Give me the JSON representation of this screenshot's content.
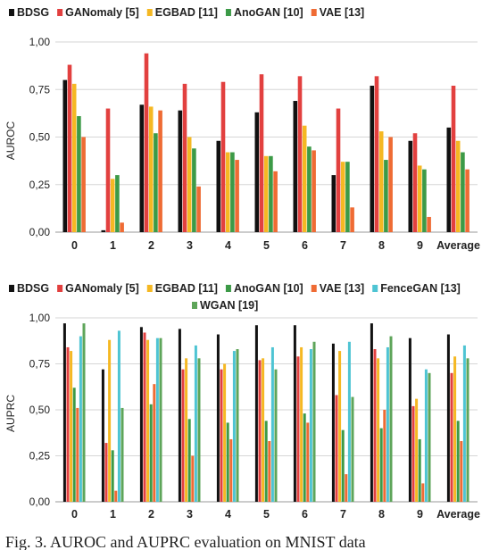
{
  "caption": "Fig. 3. AUROC and AUPRC evaluation on MNIST data",
  "chart_data": [
    {
      "type": "bar",
      "title": "",
      "ylabel": "AUROC",
      "xlabel": "",
      "ylim": [
        0,
        1
      ],
      "yticks": [
        "0,00",
        "0,25",
        "0,50",
        "0,75",
        "1,00"
      ],
      "yticks_values": [
        0,
        0.25,
        0.5,
        0.75,
        1.0
      ],
      "grid": true,
      "legend": "top",
      "categories": [
        "0",
        "1",
        "2",
        "3",
        "4",
        "5",
        "6",
        "7",
        "8",
        "9",
        "Average"
      ],
      "series": [
        {
          "name": "BDSG",
          "color": "#111111",
          "values": [
            0.8,
            0.01,
            0.67,
            0.64,
            0.48,
            0.63,
            0.69,
            0.3,
            0.77,
            0.48,
            0.55
          ]
        },
        {
          "name": "GANomaly [5]",
          "color": "#e2403f",
          "values": [
            0.88,
            0.65,
            0.94,
            0.78,
            0.79,
            0.83,
            0.82,
            0.65,
            0.82,
            0.52,
            0.77
          ]
        },
        {
          "name": "EGBAD [11]",
          "color": "#f5b823",
          "values": [
            0.78,
            0.28,
            0.66,
            0.5,
            0.42,
            0.4,
            0.56,
            0.37,
            0.53,
            0.35,
            0.48
          ]
        },
        {
          "name": "AnoGAN [10]",
          "color": "#3c9a47",
          "values": [
            0.61,
            0.3,
            0.52,
            0.44,
            0.42,
            0.4,
            0.45,
            0.37,
            0.38,
            0.33,
            0.42
          ]
        },
        {
          "name": "VAE [13]",
          "color": "#ef6b34",
          "values": [
            0.5,
            0.05,
            0.64,
            0.24,
            0.38,
            0.32,
            0.43,
            0.13,
            0.5,
            0.08,
            0.33
          ]
        }
      ]
    },
    {
      "type": "bar",
      "title": "",
      "ylabel": "AUPRC",
      "xlabel": "",
      "ylim": [
        0,
        1
      ],
      "yticks": [
        "0,00",
        "0,25",
        "0,50",
        "0,75",
        "1,00"
      ],
      "yticks_values": [
        0,
        0.25,
        0.5,
        0.75,
        1.0
      ],
      "grid": true,
      "legend": "top",
      "categories": [
        "0",
        "1",
        "2",
        "3",
        "4",
        "5",
        "6",
        "7",
        "8",
        "9",
        "Average"
      ],
      "series": [
        {
          "name": "BDSG",
          "color": "#111111",
          "values": [
            0.97,
            0.72,
            0.95,
            0.94,
            0.91,
            0.96,
            0.96,
            0.86,
            0.97,
            0.89,
            0.91
          ]
        },
        {
          "name": "GANomaly [5]",
          "color": "#e2403f",
          "values": [
            0.84,
            0.32,
            0.92,
            0.72,
            0.72,
            0.77,
            0.79,
            0.58,
            0.83,
            0.52,
            0.7
          ]
        },
        {
          "name": "EGBAD [11]",
          "color": "#f5b823",
          "values": [
            0.82,
            0.88,
            0.88,
            0.78,
            0.75,
            0.78,
            0.84,
            0.82,
            0.78,
            0.56,
            0.79
          ]
        },
        {
          "name": "AnoGAN [10]",
          "color": "#3c9a47",
          "values": [
            0.62,
            0.28,
            0.53,
            0.45,
            0.43,
            0.44,
            0.48,
            0.39,
            0.4,
            0.34,
            0.44
          ]
        },
        {
          "name": "VAE [13]",
          "color": "#ef6b34",
          "values": [
            0.51,
            0.06,
            0.64,
            0.25,
            0.34,
            0.33,
            0.43,
            0.15,
            0.5,
            0.1,
            0.33
          ]
        },
        {
          "name": "FenceGAN [13]",
          "color": "#4ec4d3",
          "values": [
            0.9,
            0.93,
            0.89,
            0.85,
            0.82,
            0.84,
            0.83,
            0.87,
            0.84,
            0.72,
            0.85
          ]
        },
        {
          "name": "WGAN [19]",
          "color": "#5ea55a",
          "values": [
            0.97,
            0.51,
            0.89,
            0.78,
            0.83,
            0.72,
            0.87,
            0.57,
            0.9,
            0.7,
            0.78
          ]
        }
      ]
    }
  ]
}
